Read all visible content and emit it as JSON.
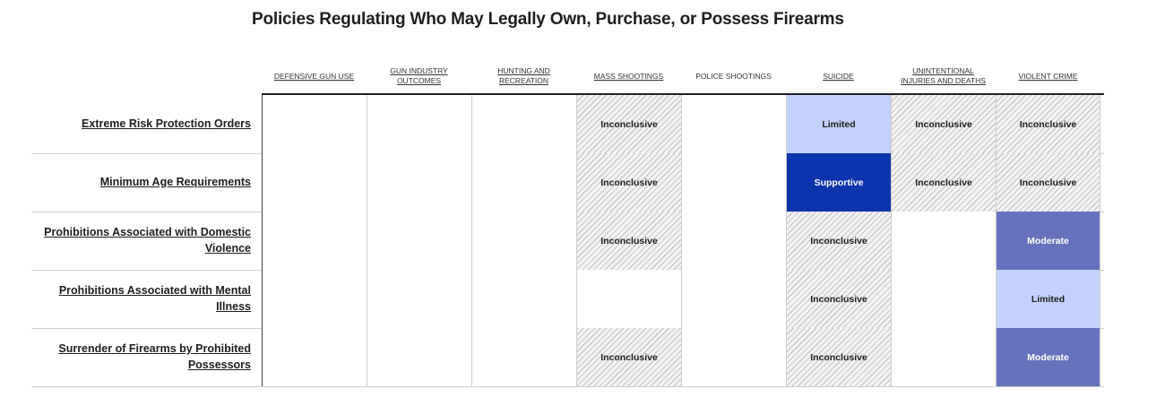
{
  "chart_data": {
    "type": "table",
    "title": "Policies Regulating Who May Legally Own, Purchase, or Possess Firearms",
    "columns": [
      {
        "label": "DEFENSIVE GUN USE",
        "link": true
      },
      {
        "label": "GUN INDUSTRY OUTCOMES",
        "link": true
      },
      {
        "label": "HUNTING AND RECREATION",
        "link": true
      },
      {
        "label": "MASS SHOOTINGS",
        "link": true
      },
      {
        "label": "POLICE SHOOTINGS",
        "link": false
      },
      {
        "label": "SUICIDE",
        "link": true
      },
      {
        "label": "UNINTENTIONAL INJURIES AND DEATHS",
        "link": true
      },
      {
        "label": "VIOLENT CRIME",
        "link": true
      }
    ],
    "rows": [
      {
        "label": "Extreme Risk Protection Orders",
        "values": [
          "",
          "",
          "",
          "Inconclusive",
          "",
          "Limited",
          "Inconclusive",
          "Inconclusive"
        ]
      },
      {
        "label": "Minimum Age Requirements",
        "values": [
          "",
          "",
          "",
          "Inconclusive",
          "",
          "Supportive",
          "Inconclusive",
          "Inconclusive"
        ]
      },
      {
        "label": "Prohibitions Associated with Domestic Violence",
        "values": [
          "",
          "",
          "",
          "Inconclusive",
          "",
          "Inconclusive",
          "",
          "Moderate"
        ]
      },
      {
        "label": "Prohibitions Associated with Mental Illness",
        "values": [
          "",
          "",
          "",
          "",
          "",
          "Inconclusive",
          "",
          "Limited"
        ]
      },
      {
        "label": "Surrender of Firearms by Prohibited Possessors",
        "values": [
          "",
          "",
          "",
          "Inconclusive",
          "",
          "Inconclusive",
          "",
          "Moderate"
        ]
      }
    ],
    "colors": {
      "Limited": "#c3d1fb",
      "Supportive": "#0c34ad",
      "Moderate": "#6673bc",
      "Inconclusive": "hatched-gray"
    }
  }
}
